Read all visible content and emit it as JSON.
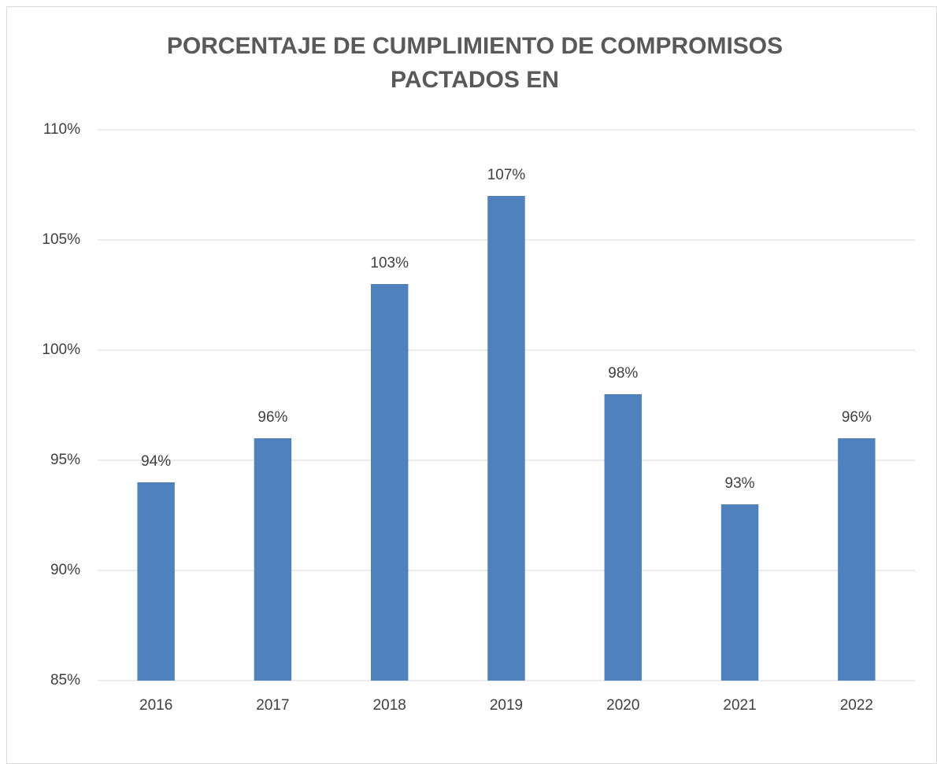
{
  "chart_data": {
    "type": "bar",
    "title": [
      "PORCENTAJE DE CUMPLIMIENTO DE COMPROMISOS",
      "PACTADOS EN"
    ],
    "categories": [
      "2016",
      "2017",
      "2018",
      "2019",
      "2020",
      "2021",
      "2022"
    ],
    "values": [
      94,
      96,
      103,
      107,
      98,
      93,
      96
    ],
    "value_labels": [
      "94%",
      "96%",
      "103%",
      "107%",
      "98%",
      "93%",
      "96%"
    ],
    "color": "#4f81bd",
    "ylim": [
      85,
      110
    ],
    "yticks": [
      {
        "value": 85,
        "label": "85%"
      },
      {
        "value": 90,
        "label": "90%"
      },
      {
        "value": 95,
        "label": "95%"
      },
      {
        "value": 100,
        "label": "100%"
      },
      {
        "value": 105,
        "label": "105%"
      },
      {
        "value": 110,
        "label": "110%"
      }
    ],
    "grid": true
  }
}
